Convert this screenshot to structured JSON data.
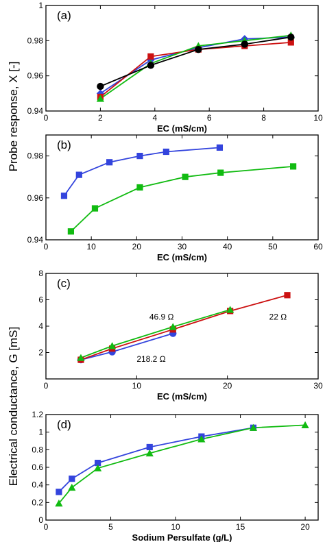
{
  "ylabels": {
    "upper": "Probe response, X [-]",
    "lower": "Electrical conductance, G [mS]"
  },
  "colors": {
    "blue": "#3344dd",
    "green": "#11bb11",
    "red": "#cc1111",
    "black": "#000000"
  },
  "chart_data": [
    {
      "type": "line",
      "panel_label": "(a)",
      "xlabel": "EC (mS/cm)",
      "xlim": [
        0,
        10
      ],
      "ylim": [
        0.94,
        1.0
      ],
      "xticks": [
        0,
        2,
        4,
        6,
        8,
        10
      ],
      "xtick_labels": [
        "0",
        "2",
        "4",
        "6",
        "8",
        "10"
      ],
      "yticks": [
        0.94,
        0.96,
        0.98,
        1.0
      ],
      "ytick_labels": [
        "0.94",
        "0.96",
        "0.98",
        "1"
      ],
      "series": [
        {
          "color": "blue",
          "marker": "diamond",
          "x": [
            2.0,
            3.85,
            5.6,
            7.3,
            9.0
          ],
          "y": [
            0.95,
            0.969,
            0.976,
            0.981,
            0.982
          ]
        },
        {
          "color": "red",
          "marker": "square",
          "x": [
            2.0,
            3.85,
            5.6,
            7.3,
            9.0
          ],
          "y": [
            0.948,
            0.971,
            0.975,
            0.977,
            0.979
          ]
        },
        {
          "color": "green",
          "marker": "triangle",
          "x": [
            2.0,
            3.85,
            5.6,
            7.3,
            9.0
          ],
          "y": [
            0.947,
            0.967,
            0.977,
            0.98,
            0.983
          ]
        },
        {
          "color": "black",
          "marker": "circle",
          "x": [
            2.0,
            3.85,
            5.6,
            7.3,
            9.0
          ],
          "y": [
            0.954,
            0.966,
            0.975,
            0.978,
            0.982
          ]
        }
      ],
      "annotations": []
    },
    {
      "type": "line",
      "panel_label": "(b)",
      "xlabel": "EC (mS/cm)",
      "xlim": [
        0,
        60
      ],
      "ylim": [
        0.94,
        0.99
      ],
      "xticks": [
        0,
        10,
        20,
        30,
        40,
        50,
        60
      ],
      "xtick_labels": [
        "0",
        "10",
        "20",
        "30",
        "40",
        "50",
        "60"
      ],
      "yticks": [
        0.94,
        0.96,
        0.98
      ],
      "ytick_labels": [
        "0.94",
        "0.96",
        "0.98"
      ],
      "series": [
        {
          "color": "blue",
          "marker": "square",
          "x": [
            4.0,
            7.3,
            14.0,
            20.7,
            26.5,
            38.3
          ],
          "y": [
            0.961,
            0.971,
            0.977,
            0.98,
            0.982,
            0.984
          ]
        },
        {
          "color": "green",
          "marker": "square",
          "x": [
            5.5,
            10.8,
            20.7,
            30.7,
            38.5,
            54.5
          ],
          "y": [
            0.944,
            0.955,
            0.965,
            0.97,
            0.972,
            0.975
          ]
        }
      ],
      "annotations": []
    },
    {
      "type": "line",
      "panel_label": "(c)",
      "xlabel": "EC (mS/cm)",
      "xlim": [
        0,
        30
      ],
      "ylim": [
        0,
        8
      ],
      "xticks": [
        0,
        10,
        20,
        30
      ],
      "xtick_labels": [
        "0",
        "10",
        "20",
        "30"
      ],
      "yticks": [
        2,
        4,
        6,
        8
      ],
      "ytick_labels": [
        "2",
        "4",
        "6",
        "8"
      ],
      "series": [
        {
          "color": "blue",
          "marker": "circle",
          "x": [
            3.85,
            7.3,
            14.0
          ],
          "y": [
            1.45,
            2.05,
            3.45
          ]
        },
        {
          "color": "red",
          "marker": "square",
          "x": [
            3.85,
            7.3,
            14.0,
            20.3,
            26.6
          ],
          "y": [
            1.45,
            2.3,
            3.75,
            5.15,
            6.35
          ]
        },
        {
          "color": "green",
          "marker": "triangle",
          "x": [
            3.85,
            7.3,
            14.0,
            20.3
          ],
          "y": [
            1.6,
            2.5,
            3.95,
            5.25
          ]
        }
      ],
      "annotations": [
        {
          "text": "46.9 Ω",
          "x": 11.4,
          "y": 4.5
        },
        {
          "text": "22 Ω",
          "x": 24.6,
          "y": 4.5
        },
        {
          "text": "218.2 Ω",
          "x": 10.0,
          "y": 1.3
        }
      ]
    },
    {
      "type": "line",
      "panel_label": "(d)",
      "xlabel": "Sodium Persulfate (g/L)",
      "xlim": [
        0,
        21
      ],
      "ylim": [
        0,
        1.2
      ],
      "xticks": [
        0,
        5,
        10,
        15,
        20
      ],
      "xtick_labels": [
        "0",
        "5",
        "10",
        "15",
        "20"
      ],
      "yticks": [
        0,
        0.2,
        0.4,
        0.6,
        0.8,
        1.0,
        1.2
      ],
      "ytick_labels": [
        "0",
        "0.2",
        "0.4",
        "0.6",
        "0.8",
        "1",
        "1.2"
      ],
      "series": [
        {
          "color": "blue",
          "marker": "square",
          "x": [
            1,
            2,
            4,
            8,
            12,
            16
          ],
          "y": [
            0.32,
            0.47,
            0.65,
            0.83,
            0.95,
            1.05
          ]
        },
        {
          "color": "green",
          "marker": "triangle",
          "x": [
            1,
            2,
            4,
            8,
            12,
            16,
            20
          ],
          "y": [
            0.19,
            0.37,
            0.59,
            0.76,
            0.92,
            1.05,
            1.08
          ]
        }
      ],
      "annotations": []
    }
  ]
}
